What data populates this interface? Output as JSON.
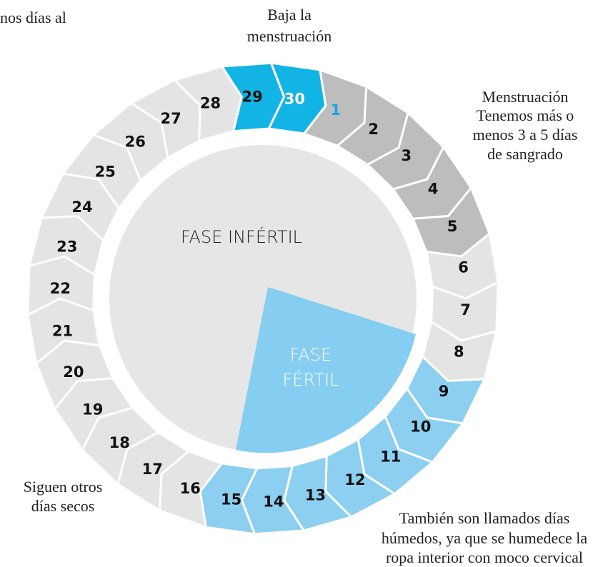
{
  "top_left_text": "nos días al",
  "top_label": [
    "Baja la",
    "menstruación"
  ],
  "right_label": [
    "Menstruación",
    "Tenemos más o",
    "menos 3 a 5 días",
    "de sangrado"
  ],
  "left_label": [
    "Siguen otros",
    "días secos"
  ],
  "bottom_label": [
    "También son llamados días",
    "húmedos, ya que se humedece la",
    "ropa interior con moco cervical"
  ],
  "center": {
    "infertile": "FASE INFÉRTIL",
    "fertile": [
      "FASE",
      "FÉRTIL"
    ]
  },
  "days": [
    "1",
    "2",
    "3",
    "4",
    "5",
    "6",
    "7",
    "8",
    "9",
    "10",
    "11",
    "12",
    "13",
    "14",
    "15",
    "16",
    "17",
    "18",
    "19",
    "20",
    "21",
    "22",
    "23",
    "24",
    "25",
    "26",
    "27",
    "28",
    "29",
    "30"
  ]
}
